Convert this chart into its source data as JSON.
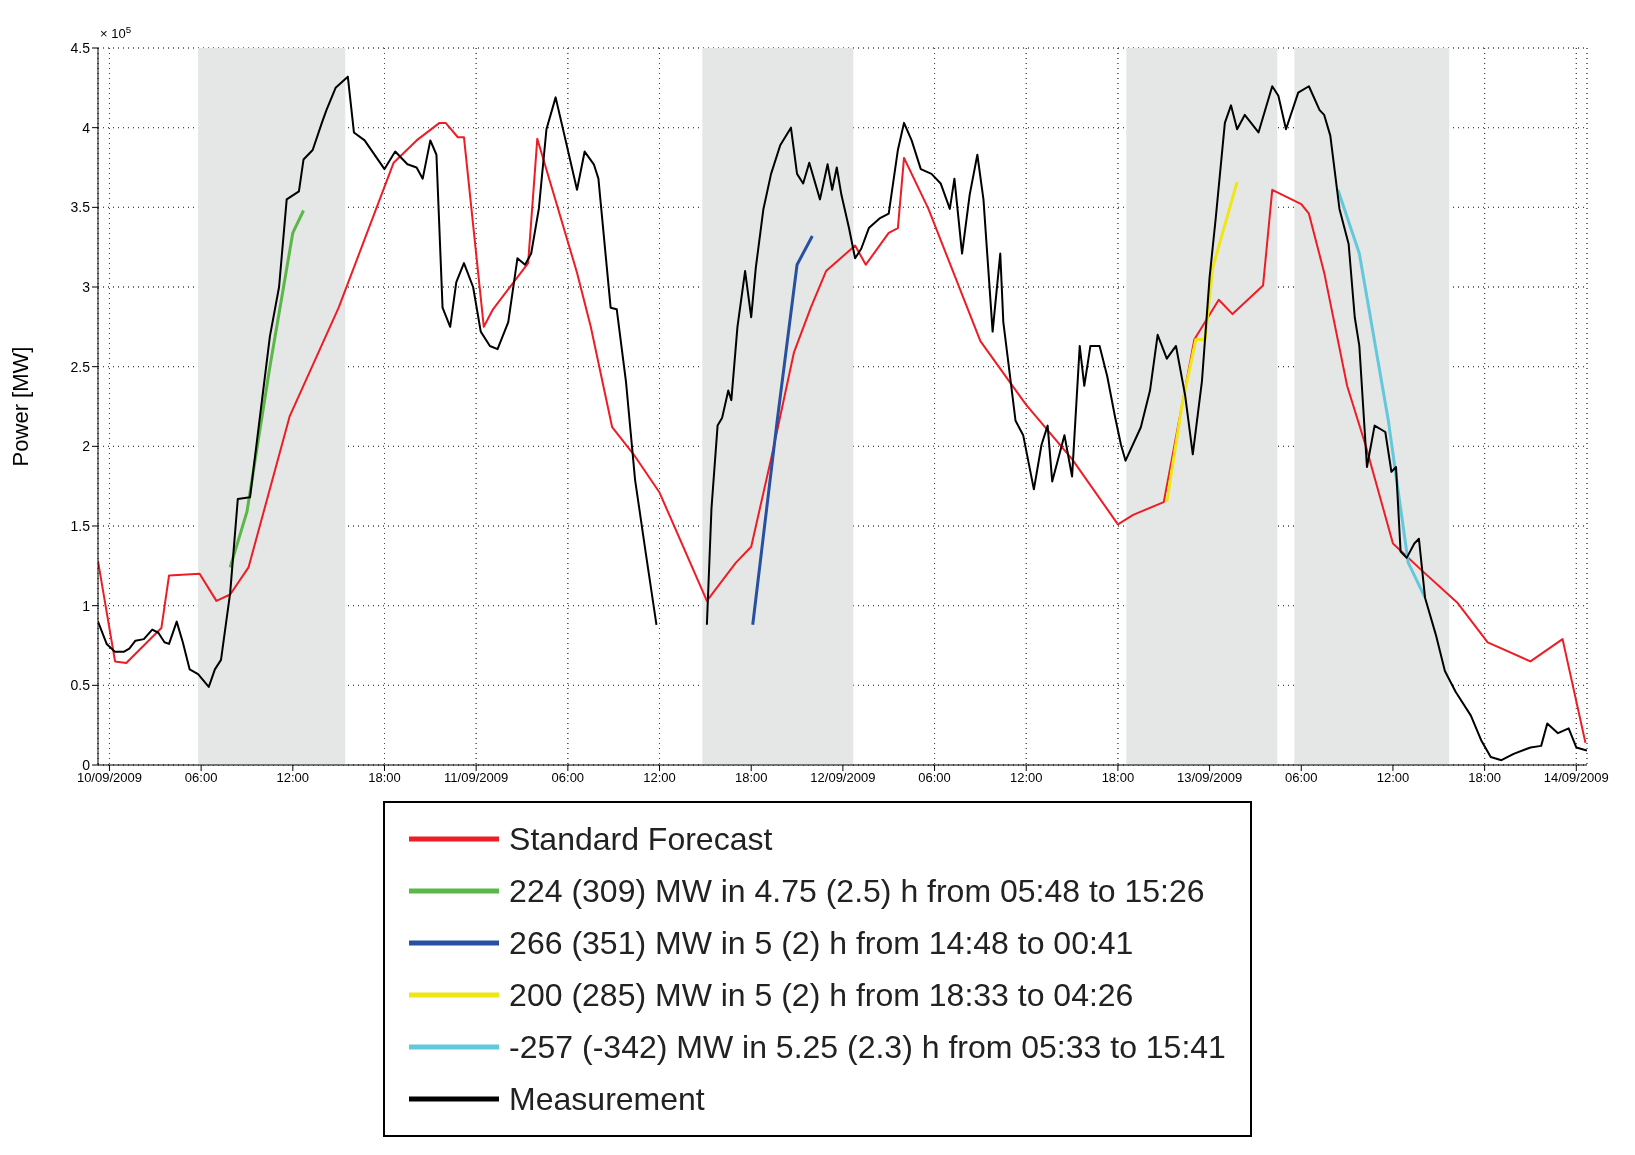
{
  "chart_data": {
    "type": "line",
    "ylabel": "Power [MW]",
    "annotations": [
      "× 10$^{5}$"
    ],
    "xlim": [
      "2009-09-09T23:15",
      "2009-09-14T00:42"
    ],
    "xticks": [
      {
        "value": "2009-09-10T00:00",
        "label": "10/09/2009"
      },
      {
        "value": "2009-09-10T06:00",
        "label": "06:00"
      },
      {
        "value": "2009-09-10T12:00",
        "label": "12:00"
      },
      {
        "value": "2009-09-10T18:00",
        "label": "18:00"
      },
      {
        "value": "2009-09-11T00:00",
        "label": "11/09/2009"
      },
      {
        "value": "2009-09-11T06:00",
        "label": "06:00"
      },
      {
        "value": "2009-09-11T12:00",
        "label": "12:00"
      },
      {
        "value": "2009-09-11T18:00",
        "label": "18:00"
      },
      {
        "value": "2009-09-12T00:00",
        "label": "12/09/2009"
      },
      {
        "value": "2009-09-12T06:00",
        "label": "06:00"
      },
      {
        "value": "2009-09-12T12:00",
        "label": "12:00"
      },
      {
        "value": "2009-09-12T18:00",
        "label": "18:00"
      },
      {
        "value": "2009-09-13T00:00",
        "label": "13/09/2009"
      },
      {
        "value": "2009-09-13T06:00",
        "label": "06:00"
      },
      {
        "value": "2009-09-13T12:00",
        "label": "12:00"
      },
      {
        "value": "2009-09-13T18:00",
        "label": "18:00"
      },
      {
        "value": "2009-09-14T00:00",
        "label": "14/09/2009"
      }
    ],
    "ylim": [
      0,
      4.5
    ],
    "yticks": [
      0,
      0.5,
      1,
      1.5,
      2,
      2.5,
      3,
      3.5,
      4,
      4.5
    ],
    "grid": true,
    "legend": "bottom",
    "marker": "none",
    "line_style": "solid",
    "bands": [
      {
        "axis": "x",
        "from": "2009-09-10T05:48",
        "to": "2009-09-10T15:26",
        "color": "#e5e6e6"
      },
      {
        "axis": "x",
        "from": "2009-09-11T14:48",
        "to": "2009-09-12T00:41",
        "color": "#e5e6e6"
      },
      {
        "axis": "x",
        "from": "2009-09-12T18:33",
        "to": "2009-09-13T04:26",
        "color": "#e5e6e6"
      },
      {
        "axis": "x",
        "from": "2009-09-13T05:33",
        "to": "2009-09-13T15:41",
        "color": "#e5e6e6"
      }
    ],
    "series": [
      {
        "name": "Standard Forecast",
        "color": "#ee1c24",
        "x": [
          "2009-09-09T23:15",
          "2009-09-10T00:22",
          "2009-09-10T01:06",
          "2009-09-10T03:24",
          "2009-09-10T03:54",
          "2009-09-10T05:54",
          "2009-09-10T07:00",
          "2009-09-10T07:54",
          "2009-09-10T09:06",
          "2009-09-10T11:48",
          "2009-09-10T15:00",
          "2009-09-10T18:36",
          "2009-09-10T20:06",
          "2009-09-10T21:36",
          "2009-09-10T22:00",
          "2009-09-10T22:48",
          "2009-09-10T23:12",
          "2009-09-11T00:30",
          "2009-09-11T01:06",
          "2009-09-11T03:24",
          "2009-09-11T04:00",
          "2009-09-11T06:36",
          "2009-09-11T07:30",
          "2009-09-11T08:54",
          "2009-09-11T10:18",
          "2009-09-11T12:00",
          "2009-09-11T15:06",
          "2009-09-11T17:00",
          "2009-09-11T18:00",
          "2009-09-11T19:18",
          "2009-09-11T20:48",
          "2009-09-11T21:54",
          "2009-09-11T22:54",
          "2009-09-12T00:48",
          "2009-09-12T01:30",
          "2009-09-12T03:00",
          "2009-09-12T03:36",
          "2009-09-12T04:00",
          "2009-09-12T05:36",
          "2009-09-12T09:00",
          "2009-09-12T12:00",
          "2009-09-12T15:00",
          "2009-09-12T18:00",
          "2009-09-12T19:00",
          "2009-09-12T21:00",
          "2009-09-12T23:00",
          "2009-09-13T00:36",
          "2009-09-13T01:30",
          "2009-09-13T03:30",
          "2009-09-13T04:06",
          "2009-09-13T06:00",
          "2009-09-13T06:30",
          "2009-09-13T07:30",
          "2009-09-13T09:00",
          "2009-09-13T10:12",
          "2009-09-13T12:00",
          "2009-09-13T13:54",
          "2009-09-13T16:12",
          "2009-09-13T18:12",
          "2009-09-13T21:00",
          "2009-09-13T23:06",
          "2009-09-14T00:36"
        ],
        "values": [
          1.28,
          0.65,
          0.64,
          0.86,
          1.19,
          1.2,
          1.03,
          1.07,
          1.24,
          2.19,
          2.87,
          3.78,
          3.92,
          4.03,
          4.03,
          3.94,
          3.94,
          2.75,
          2.86,
          3.15,
          3.93,
          3.09,
          2.75,
          2.12,
          1.95,
          1.71,
          1.03,
          1.27,
          1.37,
          1.92,
          2.59,
          2.87,
          3.1,
          3.26,
          3.14,
          3.34,
          3.37,
          3.81,
          3.49,
          2.66,
          2.26,
          1.92,
          1.51,
          1.57,
          1.65,
          2.67,
          2.92,
          2.83,
          3.01,
          3.61,
          3.52,
          3.46,
          3.09,
          2.38,
          2.01,
          1.39,
          1.22,
          1.02,
          0.77,
          0.65,
          0.79,
          0.14
        ]
      },
      {
        "name": "224 (309) MW in 4.75 (2.5) h from 05:48 to 15:26",
        "color": "#5ab946",
        "x": [
          "2009-09-10T07:54",
          "2009-09-10T09:00",
          "2009-09-10T10:30",
          "2009-09-10T12:00",
          "2009-09-10T12:42"
        ],
        "values": [
          1.24,
          1.59,
          2.5,
          3.34,
          3.48
        ]
      },
      {
        "name": "266 (351) MW in 5 (2) h from 14:48 to 00:41",
        "color": "#2850a0",
        "x": [
          "2009-09-11T18:06",
          "2009-09-11T19:42",
          "2009-09-11T21:00",
          "2009-09-11T22:00"
        ],
        "values": [
          0.88,
          2.16,
          3.14,
          3.32
        ]
      },
      {
        "name": "200 (285) MW in 5 (2) h from 18:33 to 04:26",
        "color": "#f0e614",
        "x": [
          "2009-09-12T21:12",
          "2009-09-12T22:12",
          "2009-09-12T23:06",
          "2009-09-12T23:42",
          "2009-09-13T00:12",
          "2009-09-13T01:48"
        ],
        "values": [
          1.65,
          2.26,
          2.67,
          2.67,
          3.12,
          3.66
        ]
      },
      {
        "name": "-257 (-342) MW in 5.25 (2.3) h from 05:33 to 15:41",
        "color": "#64c8dc",
        "x": [
          "2009-09-13T08:24",
          "2009-09-13T09:48",
          "2009-09-13T11:42",
          "2009-09-13T13:00",
          "2009-09-13T14:06"
        ],
        "values": [
          3.61,
          3.21,
          2.16,
          1.27,
          1.05
        ]
      },
      {
        "name": "Measurement",
        "color": "#000000",
        "x": [
          "2009-09-09T23:15",
          "2009-09-09T23:49",
          "2009-09-10T00:22",
          "2009-09-10T00:56",
          "2009-09-10T01:18",
          "2009-09-10T01:42",
          "2009-09-10T02:15",
          "2009-09-10T02:48",
          "2009-09-10T03:12",
          "2009-09-10T03:36",
          "2009-09-10T03:54",
          "2009-09-10T04:24",
          "2009-09-10T04:48",
          "2009-09-10T05:15",
          "2009-09-10T05:48",
          "2009-09-10T06:30",
          "2009-09-10T06:54",
          "2009-09-10T07:18",
          "2009-09-10T07:54",
          "2009-09-10T08:24",
          "2009-09-10T09:12",
          "2009-09-10T09:42",
          "2009-09-10T10:30",
          "2009-09-10T11:06",
          "2009-09-10T11:36",
          "2009-09-10T12:24",
          "2009-09-10T12:42",
          "2009-09-10T13:18",
          "2009-09-10T13:54",
          "2009-09-10T14:12",
          "2009-09-10T14:48",
          "2009-09-10T15:36",
          "2009-09-10T16:00",
          "2009-09-10T16:42",
          "2009-09-10T18:00",
          "2009-09-10T18:42",
          "2009-09-10T19:30",
          "2009-09-10T20:06",
          "2009-09-10T20:30",
          "2009-09-10T21:00",
          "2009-09-10T21:24",
          "2009-09-10T21:48",
          "2009-09-10T22:18",
          "2009-09-10T22:42",
          "2009-09-10T23:12",
          "2009-09-10T23:48",
          "2009-09-11T00:18",
          "2009-09-11T00:54",
          "2009-09-11T01:24",
          "2009-09-11T02:06",
          "2009-09-11T02:42",
          "2009-09-11T03:12",
          "2009-09-11T03:36",
          "2009-09-11T04:06",
          "2009-09-11T04:36",
          "2009-09-11T05:12",
          "2009-09-11T06:00",
          "2009-09-11T06:36",
          "2009-09-11T07:06",
          "2009-09-11T07:42",
          "2009-09-11T08:00",
          "2009-09-11T08:48",
          "2009-09-11T09:12",
          "2009-09-11T09:48",
          "2009-09-11T10:24",
          "2009-09-11T11:06",
          "2009-09-11T11:48",
          "2009-09-11T13:30",
          "2009-09-11T15:06",
          "2009-09-11T15:24",
          "2009-09-11T15:48",
          "2009-09-11T16:06",
          "2009-09-11T16:30",
          "2009-09-11T16:42",
          "2009-09-11T17:06",
          "2009-09-11T17:36",
          "2009-09-11T18:00",
          "2009-09-11T18:18",
          "2009-09-11T18:48",
          "2009-09-11T19:18",
          "2009-09-11T19:54",
          "2009-09-11T20:36",
          "2009-09-11T21:00",
          "2009-09-11T21:24",
          "2009-09-11T21:48",
          "2009-09-11T22:30",
          "2009-09-11T23:00",
          "2009-09-11T23:18",
          "2009-09-11T23:36",
          "2009-09-11T23:54",
          "2009-09-12T00:24",
          "2009-09-12T00:48",
          "2009-09-12T01:12",
          "2009-09-12T01:42",
          "2009-09-12T02:24",
          "2009-09-12T03:00",
          "2009-09-12T03:36",
          "2009-09-12T04:00",
          "2009-09-12T04:30",
          "2009-09-12T05:06",
          "2009-09-12T05:48",
          "2009-09-12T06:24",
          "2009-09-12T07:00",
          "2009-09-12T07:18",
          "2009-09-12T07:48",
          "2009-09-12T08:18",
          "2009-09-12T08:48",
          "2009-09-12T09:12",
          "2009-09-12T09:48",
          "2009-09-12T10:18",
          "2009-09-12T10:30",
          "2009-09-12T10:54",
          "2009-09-12T11:18",
          "2009-09-12T11:48",
          "2009-09-12T12:30",
          "2009-09-12T13:00",
          "2009-09-12T13:24",
          "2009-09-12T13:42",
          "2009-09-12T14:30",
          "2009-09-12T15:00",
          "2009-09-12T15:30",
          "2009-09-12T15:48",
          "2009-09-12T16:12",
          "2009-09-12T16:48",
          "2009-09-12T17:18",
          "2009-09-12T17:48",
          "2009-09-12T18:12",
          "2009-09-12T18:30",
          "2009-09-12T19:30",
          "2009-09-12T20:06",
          "2009-09-12T20:36",
          "2009-09-12T21:12",
          "2009-09-12T21:48",
          "2009-09-12T22:24",
          "2009-09-12T22:54",
          "2009-09-12T23:30",
          "2009-09-13T00:00",
          "2009-09-13T00:24",
          "2009-09-13T01:00",
          "2009-09-13T01:24",
          "2009-09-13T01:48",
          "2009-09-13T02:18",
          "2009-09-13T03:12",
          "2009-09-13T04:06",
          "2009-09-13T04:30",
          "2009-09-13T05:00",
          "2009-09-13T05:48",
          "2009-09-13T06:30",
          "2009-09-13T07:12",
          "2009-09-13T07:30",
          "2009-09-13T07:54",
          "2009-09-13T08:30",
          "2009-09-13T09:06",
          "2009-09-13T09:30",
          "2009-09-13T09:48",
          "2009-09-13T10:18",
          "2009-09-13T10:48",
          "2009-09-13T11:30",
          "2009-09-13T11:54",
          "2009-09-13T12:12",
          "2009-09-13T12:30",
          "2009-09-13T12:54",
          "2009-09-13T13:24",
          "2009-09-13T13:42",
          "2009-09-13T14:06",
          "2009-09-13T14:48",
          "2009-09-13T15:24",
          "2009-09-13T16:06",
          "2009-09-13T17:06",
          "2009-09-13T17:48",
          "2009-09-13T18:24",
          "2009-09-13T19:06",
          "2009-09-13T19:54",
          "2009-09-13T21:00",
          "2009-09-13T21:42",
          "2009-09-13T22:06",
          "2009-09-13T22:48",
          "2009-09-13T23:30",
          "2009-09-14T00:00",
          "2009-09-14T00:42"
        ],
        "values": [
          0.9,
          0.76,
          0.71,
          0.71,
          0.73,
          0.78,
          0.79,
          0.85,
          0.83,
          0.77,
          0.76,
          0.9,
          0.77,
          0.6,
          0.57,
          0.49,
          0.6,
          0.66,
          1.08,
          1.67,
          1.68,
          2.07,
          2.69,
          3.0,
          3.55,
          3.6,
          3.8,
          3.86,
          4.03,
          4.11,
          4.25,
          4.32,
          3.97,
          3.92,
          3.74,
          3.85,
          3.77,
          3.75,
          3.68,
          3.92,
          3.83,
          2.87,
          2.75,
          3.03,
          3.15,
          3.0,
          2.72,
          2.63,
          2.61,
          2.78,
          3.18,
          3.14,
          3.21,
          3.49,
          3.99,
          4.19,
          3.86,
          3.61,
          3.85,
          3.77,
          3.68,
          2.87,
          2.86,
          2.41,
          1.79,
          1.33,
          0.88,
          null,
          0.88,
          1.61,
          2.13,
          2.18,
          2.35,
          2.29,
          2.75,
          3.1,
          2.81,
          3.12,
          3.49,
          3.71,
          3.89,
          4.0,
          3.71,
          3.65,
          3.78,
          3.55,
          3.77,
          3.61,
          3.75,
          3.58,
          3.37,
          3.18,
          3.24,
          3.37,
          3.43,
          3.46,
          3.86,
          4.03,
          3.92,
          3.74,
          3.71,
          3.65,
          3.49,
          3.68,
          3.21,
          3.58,
          3.83,
          3.55,
          2.72,
          3.21,
          2.78,
          2.47,
          2.16,
          2.07,
          1.73,
          2.01,
          2.13,
          1.78,
          2.07,
          1.81,
          2.63,
          2.38,
          2.63,
          2.63,
          2.44,
          2.19,
          2.01,
          1.91,
          2.12,
          2.35,
          2.7,
          2.55,
          2.63,
          2.32,
          1.95,
          2.41,
          3.06,
          3.43,
          4.03,
          4.14,
          3.99,
          4.08,
          3.97,
          4.26,
          4.2,
          3.99,
          4.22,
          4.26,
          4.11,
          4.08,
          3.95,
          3.49,
          3.27,
          2.81,
          2.63,
          1.87,
          2.13,
          2.09,
          1.84,
          1.87,
          1.34,
          1.3,
          1.39,
          1.42,
          1.05,
          0.82,
          0.59,
          0.46,
          0.31,
          0.15,
          0.05,
          0.03,
          0.07,
          0.11,
          0.12,
          0.26,
          0.2,
          0.23,
          0.11,
          0.09
        ]
      }
    ]
  }
}
